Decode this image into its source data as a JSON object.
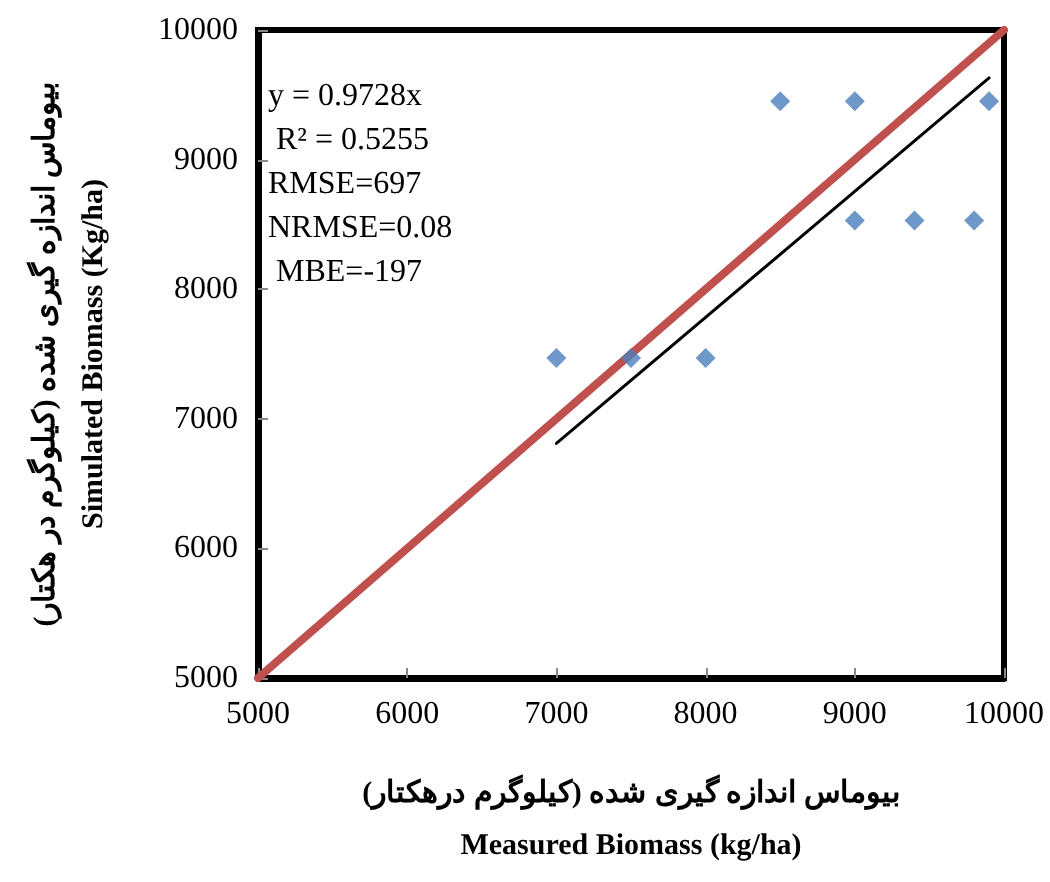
{
  "chart_data": {
    "type": "scatter",
    "xlabel": "بیوماس اندازه گیری شده (کیلوگرم درهکتار)\nMeasured Biomass (kg/ha)",
    "ylabel": "بیوماس اندازه گیری شده (کیلوگرم در هکتار)\nSimulated Biomass (Kg/ha)",
    "xlim": [
      5000,
      10000
    ],
    "xticks": [
      5000,
      6000,
      7000,
      8000,
      9000,
      10000
    ],
    "ylim": [
      5000,
      10000
    ],
    "yticks": [
      5000,
      6000,
      7000,
      8000,
      9000,
      10000
    ],
    "grid": false,
    "series": [
      {
        "type": "line",
        "marker": "none",
        "color": "#c0504d",
        "x": [
          5000,
          10000
        ],
        "values": [
          5000,
          10000
        ]
      },
      {
        "type": "line",
        "marker": "none",
        "color": "#000000",
        "x": [
          7000,
          9900
        ],
        "values": [
          6810,
          9630
        ]
      },
      {
        "marker": "diamond",
        "color": "#4a7ebb",
        "x": [
          7000,
          7500,
          8000,
          8500,
          9000,
          9000,
          9400,
          9800,
          9900
        ],
        "values": [
          7470,
          7470,
          7470,
          9450,
          9450,
          8530,
          8530,
          8530,
          9450
        ]
      }
    ],
    "annotations": [
      "y = 0.9728x",
      " R² = 0.5255",
      "RMSE=697",
      "NRMSE=0.08",
      " MBE=-197"
    ]
  }
}
